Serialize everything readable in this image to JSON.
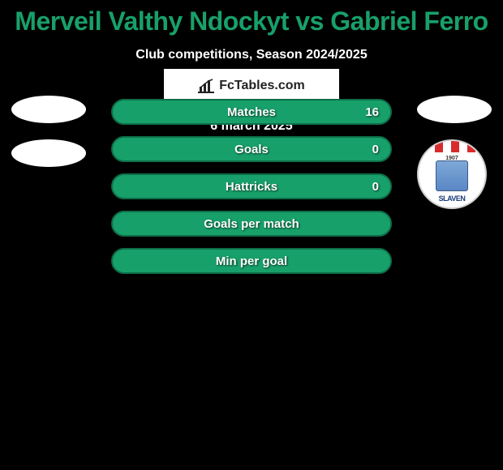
{
  "title": {
    "text": "Merveil Valthy Ndockyt vs Gabriel Ferro",
    "color": "#18a06a",
    "fontsize": 32
  },
  "subtitle": "Club competitions, Season 2024/2025",
  "stats": {
    "row_background": "#18a06a",
    "row_border": "#0d6f48",
    "rows": [
      {
        "label": "Matches",
        "left": "",
        "right": "16"
      },
      {
        "label": "Goals",
        "left": "",
        "right": "0"
      },
      {
        "label": "Hattricks",
        "left": "",
        "right": "0"
      },
      {
        "label": "Goals per match",
        "left": "",
        "right": ""
      },
      {
        "label": "Min per goal",
        "left": "",
        "right": ""
      }
    ]
  },
  "left_avatars": {
    "count": 2
  },
  "right_avatars": {
    "ellipse": true,
    "badge": {
      "year": "1907",
      "name": "SLAVEN"
    }
  },
  "brand": {
    "text": "FcTables.com"
  },
  "date": "6 march 2025",
  "colors": {
    "page_background": "#000000",
    "text_white": "#ffffff",
    "accent": "#18a06a"
  }
}
